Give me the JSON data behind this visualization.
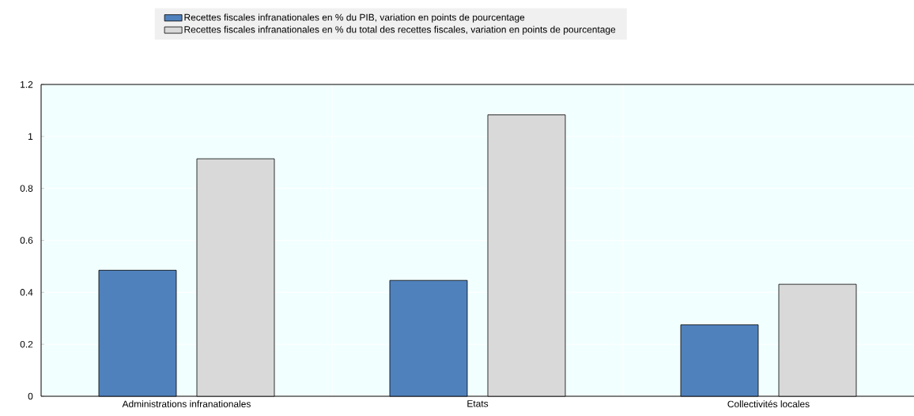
{
  "chart_data": {
    "type": "bar",
    "categories": [
      "Administrations infranationales",
      "Etats",
      "Collectivités locales"
    ],
    "series": [
      {
        "name": "Recettes fiscales infranationales en % du PIB, variation en points de pourcentage",
        "color": "#4f81bd",
        "values": [
          0.485,
          0.446,
          0.275
        ]
      },
      {
        "name": "Recettes fiscales infranationales en % du total des recettes fiscales, variation en points de pourcentage",
        "color": "#d9d9d9",
        "values": [
          0.914,
          1.083,
          0.431
        ]
      }
    ],
    "ylim": [
      0,
      1.2
    ],
    "yticks": [
      0,
      0.2,
      0.4,
      0.6,
      0.8,
      1,
      1.2
    ],
    "grid": "y",
    "legend": "top"
  }
}
